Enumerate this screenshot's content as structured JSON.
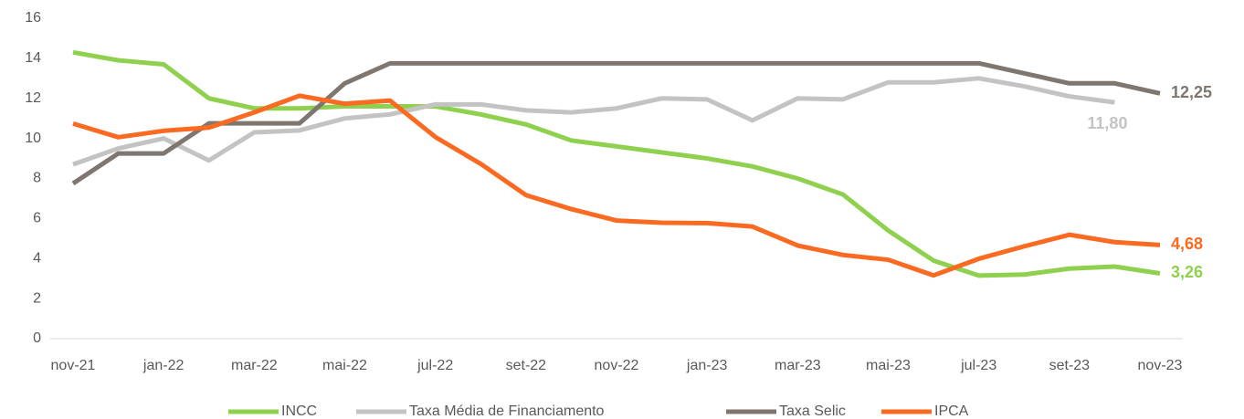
{
  "chart_data": {
    "type": "line",
    "categories": [
      "nov-21",
      null,
      "jan-22",
      null,
      "mar-22",
      null,
      "mai-22",
      null,
      "jul-22",
      null,
      "set-22",
      null,
      "nov-22",
      null,
      "jan-23",
      null,
      "mar-23",
      null,
      "mai-23",
      null,
      "jul-23",
      null,
      "set-23",
      null,
      "nov-23"
    ],
    "series": [
      {
        "name": "INCC",
        "color": "#8fd14f",
        "values": [
          14.3,
          13.9,
          13.7,
          12.0,
          11.5,
          11.5,
          11.6,
          11.6,
          11.6,
          11.2,
          10.7,
          9.9,
          9.6,
          9.3,
          9.0,
          8.6,
          8.0,
          7.2,
          5.4,
          3.9,
          3.15,
          3.2,
          3.5,
          3.6,
          3.26
        ],
        "value_labels": [
          null,
          null,
          null,
          null,
          null,
          null,
          null,
          null,
          null,
          null,
          null,
          null,
          null,
          null,
          null,
          null,
          null,
          null,
          null,
          null,
          null,
          null,
          null,
          null,
          "3,26"
        ]
      },
      {
        "name": "Taxa Média de Financiamento",
        "color": "#c3c3c3",
        "values": [
          8.7,
          9.5,
          10.0,
          8.9,
          10.3,
          10.4,
          11.0,
          11.2,
          11.7,
          11.7,
          11.4,
          11.3,
          11.5,
          12.0,
          11.95,
          10.9,
          12.0,
          11.95,
          12.8,
          12.8,
          13.0,
          12.6,
          12.1,
          11.8,
          null
        ],
        "value_labels": [
          null,
          null,
          null,
          null,
          null,
          null,
          null,
          null,
          null,
          null,
          null,
          null,
          null,
          null,
          null,
          null,
          null,
          null,
          null,
          null,
          null,
          null,
          null,
          "11,80",
          null
        ]
      },
      {
        "name": "Taxa Selic",
        "color": "#7f7670",
        "values": [
          7.75,
          9.25,
          9.25,
          10.75,
          10.75,
          10.75,
          12.75,
          13.75,
          13.75,
          13.75,
          13.75,
          13.75,
          13.75,
          13.75,
          13.75,
          13.75,
          13.75,
          13.75,
          13.75,
          13.75,
          13.75,
          13.25,
          12.75,
          12.75,
          12.25
        ],
        "value_labels": [
          null,
          null,
          null,
          null,
          null,
          null,
          null,
          null,
          null,
          null,
          null,
          null,
          null,
          null,
          null,
          null,
          null,
          null,
          null,
          null,
          null,
          null,
          null,
          null,
          "12,25"
        ]
      },
      {
        "name": "IPCA",
        "color": "#fa6a21",
        "values": [
          10.74,
          10.06,
          10.38,
          10.54,
          11.3,
          12.13,
          11.73,
          11.89,
          10.07,
          8.73,
          7.17,
          6.47,
          5.9,
          5.79,
          5.77,
          5.6,
          4.65,
          4.18,
          3.94,
          3.16,
          3.99,
          4.61,
          5.19,
          4.82,
          4.68
        ],
        "value_labels": [
          null,
          null,
          null,
          null,
          null,
          null,
          null,
          null,
          null,
          null,
          null,
          null,
          null,
          null,
          null,
          null,
          null,
          null,
          null,
          null,
          null,
          null,
          null,
          null,
          "4,68"
        ]
      }
    ],
    "ylim": [
      0,
      16
    ],
    "yticks": [
      0,
      2,
      4,
      6,
      8,
      10,
      12,
      14,
      16
    ]
  }
}
